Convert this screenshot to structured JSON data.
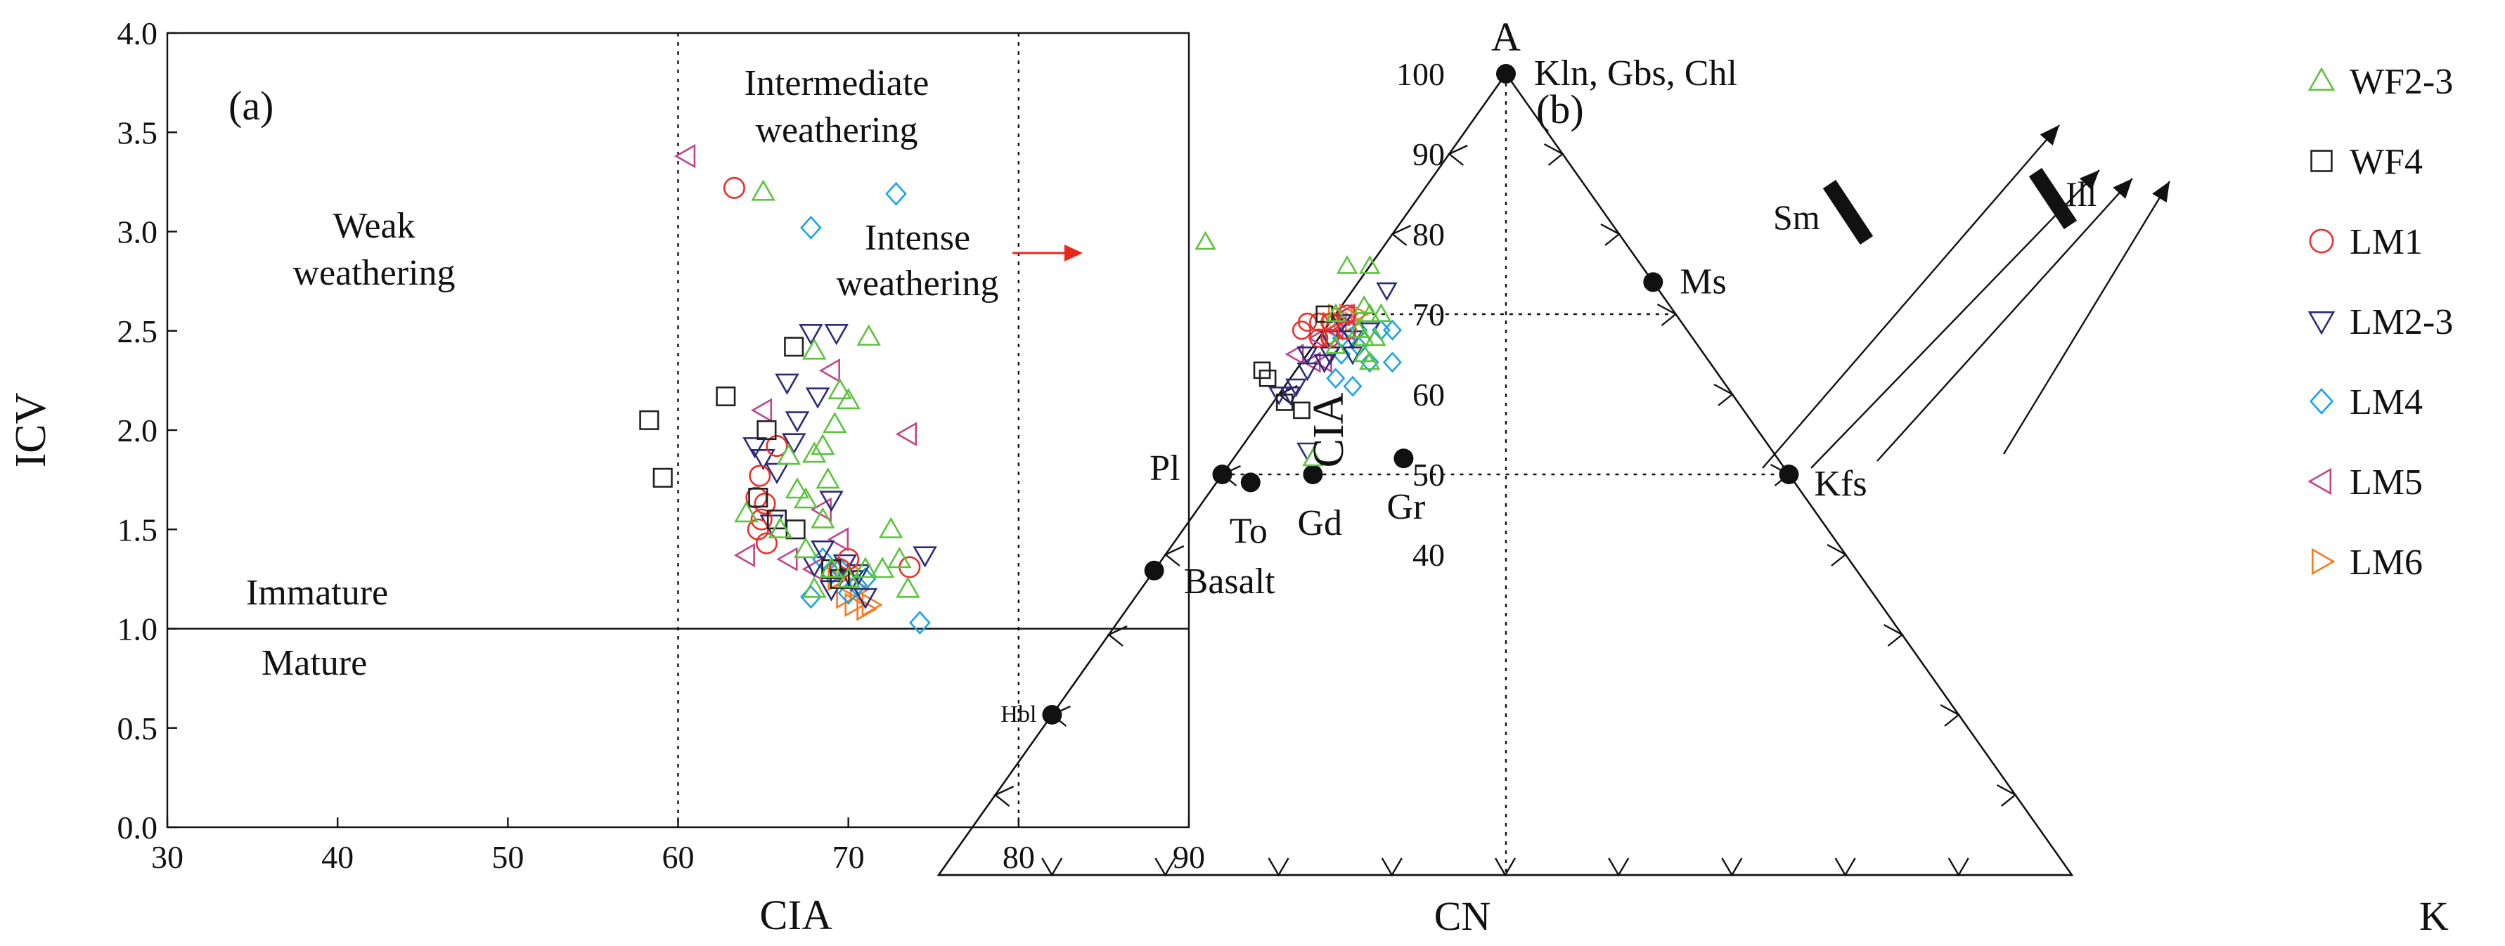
{
  "chart_data": [
    {
      "type": "scatter",
      "panel_label": "(a)",
      "xlabel": "CIA",
      "ylabel": "ICV",
      "xlim": [
        30,
        90
      ],
      "ylim": [
        0.0,
        4.0
      ],
      "x_ticks": [
        "30",
        "40",
        "50",
        "60",
        "70",
        "80",
        "90"
      ],
      "y_ticks": [
        "0.0",
        "0.5",
        "1.0",
        "1.5",
        "2.0",
        "2.5",
        "3.0",
        "3.5",
        "4.0"
      ],
      "reference_lines": {
        "vertical_x": [
          60,
          80
        ],
        "horizontal_y": 1.0
      },
      "zone_labels": {
        "weak": [
          "Weak",
          "weathering"
        ],
        "intermediate": [
          "Intermediate",
          "weathering"
        ],
        "intense": [
          "Intense",
          "weathering"
        ],
        "immature": "Immature",
        "mature": "Mature"
      },
      "arrow_color": "#e8291d",
      "series": [
        {
          "name": "LM6",
          "marker": "tri-right",
          "color": "#f47b20",
          "points": [
            [
              70.3,
              1.12
            ],
            [
              71.0,
              1.1
            ],
            [
              69.8,
              1.16
            ],
            [
              70.6,
              1.2
            ],
            [
              69.3,
              1.25
            ],
            [
              71.3,
              1.12
            ],
            [
              70.0,
              1.3
            ]
          ]
        },
        {
          "name": "LM5",
          "marker": "tri-left",
          "color": "#c0458a",
          "points": [
            [
              60.5,
              3.38
            ],
            [
              69.0,
              2.3
            ],
            [
              73.5,
              1.98
            ],
            [
              65.0,
              2.1
            ],
            [
              68.5,
              1.6
            ],
            [
              64.0,
              1.37
            ],
            [
              66.5,
              1.35
            ],
            [
              69.5,
              1.45
            ],
            [
              68.0,
              1.3
            ]
          ]
        },
        {
          "name": "LM4",
          "marker": "diamond",
          "color": "#1aa3e8",
          "points": [
            [
              72.8,
              3.19
            ],
            [
              67.8,
              3.02
            ],
            [
              74.2,
              1.03
            ],
            [
              67.8,
              1.16
            ],
            [
              70.5,
              1.22
            ],
            [
              69.0,
              1.28
            ],
            [
              68.5,
              1.35
            ],
            [
              71.0,
              1.25
            ],
            [
              70.0,
              1.18
            ],
            [
              69.5,
              1.3
            ]
          ]
        },
        {
          "name": "LM2-3",
          "marker": "tri-down",
          "color": "#2b2b7a",
          "points": [
            [
              67.8,
              2.49
            ],
            [
              69.3,
              2.49
            ],
            [
              66.4,
              2.24
            ],
            [
              68.2,
              2.17
            ],
            [
              67.0,
              2.05
            ],
            [
              64.5,
              1.92
            ],
            [
              66.8,
              1.94
            ],
            [
              65.0,
              1.86
            ],
            [
              65.8,
              1.79
            ],
            [
              69.0,
              1.65
            ],
            [
              65.5,
              1.53
            ],
            [
              74.5,
              1.37
            ],
            [
              68.5,
              1.4
            ],
            [
              69.8,
              1.33
            ],
            [
              70.6,
              1.28
            ],
            [
              69.0,
              1.2
            ],
            [
              71.0,
              1.16
            ],
            [
              70.2,
              1.25
            ],
            [
              68.0,
              1.32
            ]
          ]
        },
        {
          "name": "LM1",
          "marker": "circle",
          "color": "#e8302a",
          "points": [
            [
              63.3,
              3.22
            ],
            [
              65.8,
              1.92
            ],
            [
              64.8,
              1.77
            ],
            [
              64.6,
              1.66
            ],
            [
              65.1,
              1.63
            ],
            [
              64.9,
              1.55
            ],
            [
              64.7,
              1.5
            ],
            [
              65.2,
              1.43
            ],
            [
              73.6,
              1.31
            ],
            [
              70.0,
              1.35
            ],
            [
              69.5,
              1.3
            ]
          ]
        },
        {
          "name": "WF4",
          "marker": "square",
          "color": "#222222",
          "points": [
            [
              58.3,
              2.05
            ],
            [
              59.1,
              1.76
            ],
            [
              62.8,
              2.17
            ],
            [
              66.8,
              2.42
            ],
            [
              65.2,
              2.0
            ],
            [
              64.7,
              1.66
            ],
            [
              65.8,
              1.55
            ],
            [
              66.9,
              1.5
            ],
            [
              69.0,
              1.3
            ],
            [
              69.5,
              1.25
            ]
          ]
        },
        {
          "name": "WF2-3",
          "marker": "tri-up",
          "color": "#5cc33d",
          "points": [
            [
              65.0,
              3.2
            ],
            [
              71.2,
              2.47
            ],
            [
              68.0,
              2.4
            ],
            [
              69.5,
              2.2
            ],
            [
              70.0,
              2.15
            ],
            [
              69.2,
              2.03
            ],
            [
              68.0,
              1.88
            ],
            [
              68.5,
              1.92
            ],
            [
              66.5,
              1.87
            ],
            [
              67.0,
              1.7
            ],
            [
              68.8,
              1.75
            ],
            [
              67.5,
              1.65
            ],
            [
              64.0,
              1.58
            ],
            [
              68.5,
              1.55
            ],
            [
              66.0,
              1.5
            ],
            [
              67.5,
              1.4
            ],
            [
              72.5,
              1.5
            ],
            [
              73.0,
              1.35
            ],
            [
              72.0,
              1.3
            ],
            [
              73.5,
              1.2
            ],
            [
              69.0,
              1.3
            ],
            [
              70.0,
              1.25
            ],
            [
              71.0,
              1.3
            ],
            [
              68.0,
              1.2
            ]
          ]
        }
      ]
    },
    {
      "type": "scatter",
      "subtype": "ternary",
      "panel_label": "(b)",
      "vertex_labels": {
        "top": "A",
        "left": "CN",
        "right": "K"
      },
      "ylabel": "CIA",
      "cia_ticks": [
        "100",
        "90",
        "80",
        "70",
        "60",
        "50",
        "40"
      ],
      "minerals": [
        {
          "label": "Kln, Gbs, Chl",
          "cn": 0,
          "k": 0
        },
        {
          "label": "Ms",
          "cn": 0,
          "k": 26
        },
        {
          "label": "Kfs",
          "cn": 0,
          "k": 50
        },
        {
          "label": "Pl",
          "cn": 50,
          "k": 0
        },
        {
          "label": "Hbl",
          "cn": 80,
          "k": 0
        },
        {
          "label": "Basalt",
          "cn": 62,
          "k": 0
        },
        {
          "label": "To",
          "cn": 48,
          "k": 3
        },
        {
          "label": "Gd",
          "cn": 42,
          "k": 8
        },
        {
          "label": "Gr",
          "cn": 33,
          "k": 15
        }
      ],
      "trend_labels": {
        "sm": "Sm",
        "ill": "Ill"
      },
      "series": [
        {
          "name": "LM6",
          "marker": "tri-right",
          "color": "#f47b20",
          "points": [
            [
              30,
              0
            ],
            [
              29,
              1
            ],
            [
              31,
              0
            ],
            [
              28,
              2
            ],
            [
              30,
              1
            ],
            [
              32,
              1
            ],
            [
              29,
              2
            ]
          ]
        },
        {
          "name": "LM5",
          "marker": "tri-left",
          "color": "#c0458a",
          "points": [
            [
              36,
              -1
            ],
            [
              33,
              0
            ],
            [
              30,
              2
            ],
            [
              34,
              2
            ],
            [
              31,
              1
            ],
            [
              35,
              1
            ],
            [
              29,
              1
            ]
          ]
        },
        {
          "name": "LM4",
          "marker": "diamond",
          "color": "#1aa3e8",
          "points": [
            [
              27,
              5
            ],
            [
              30,
              6
            ],
            [
              28,
              8
            ],
            [
              32,
              3
            ],
            [
              33,
              6
            ],
            [
              31,
              2
            ],
            [
              29,
              3
            ],
            [
              30,
              4
            ],
            [
              34,
              4
            ],
            [
              26,
              6
            ]
          ]
        },
        {
          "name": "LM2-3",
          "marker": "tri-down",
          "color": "#2b2b7a",
          "points": [
            [
              24,
              3
            ],
            [
              28,
              4
            ],
            [
              30,
              3
            ],
            [
              32,
              1
            ],
            [
              35,
              0
            ],
            [
              38,
              1
            ],
            [
              34,
              2
            ],
            [
              36,
              1
            ],
            [
              40,
              0
            ],
            [
              30,
              1
            ],
            [
              39,
              1
            ],
            [
              41,
              6
            ],
            [
              33,
              2
            ],
            [
              31,
              4
            ]
          ]
        },
        {
          "name": "LM1",
          "marker": "circle",
          "color": "#e8302a",
          "points": [
            [
              33,
              -2
            ],
            [
              32,
              -1
            ],
            [
              34,
              -2
            ],
            [
              31,
              0
            ],
            [
              29,
              1
            ],
            [
              30,
              2
            ],
            [
              32,
              1
            ],
            [
              33,
              0
            ]
          ]
        },
        {
          "name": "WF4",
          "marker": "square",
          "color": "#222222",
          "points": [
            [
              31,
              -1
            ],
            [
              40,
              -3
            ],
            [
              40,
              -2
            ],
            [
              40,
              1
            ],
            [
              39,
              3
            ]
          ]
        },
        {
          "name": "WF2-3",
          "marker": "tri-up",
          "color": "#5cc33d",
          "points": [
            [
              37,
              -16
            ],
            [
              26,
              -2
            ],
            [
              24,
              0
            ],
            [
              27,
              2
            ],
            [
              28,
              5
            ],
            [
              29,
              4
            ],
            [
              30,
              5
            ],
            [
              26,
              4
            ],
            [
              30,
              0
            ],
            [
              41,
              7
            ],
            [
              29,
              3
            ],
            [
              30,
              6
            ],
            [
              32,
              2
            ],
            [
              27,
              3
            ]
          ]
        }
      ]
    }
  ]
}
